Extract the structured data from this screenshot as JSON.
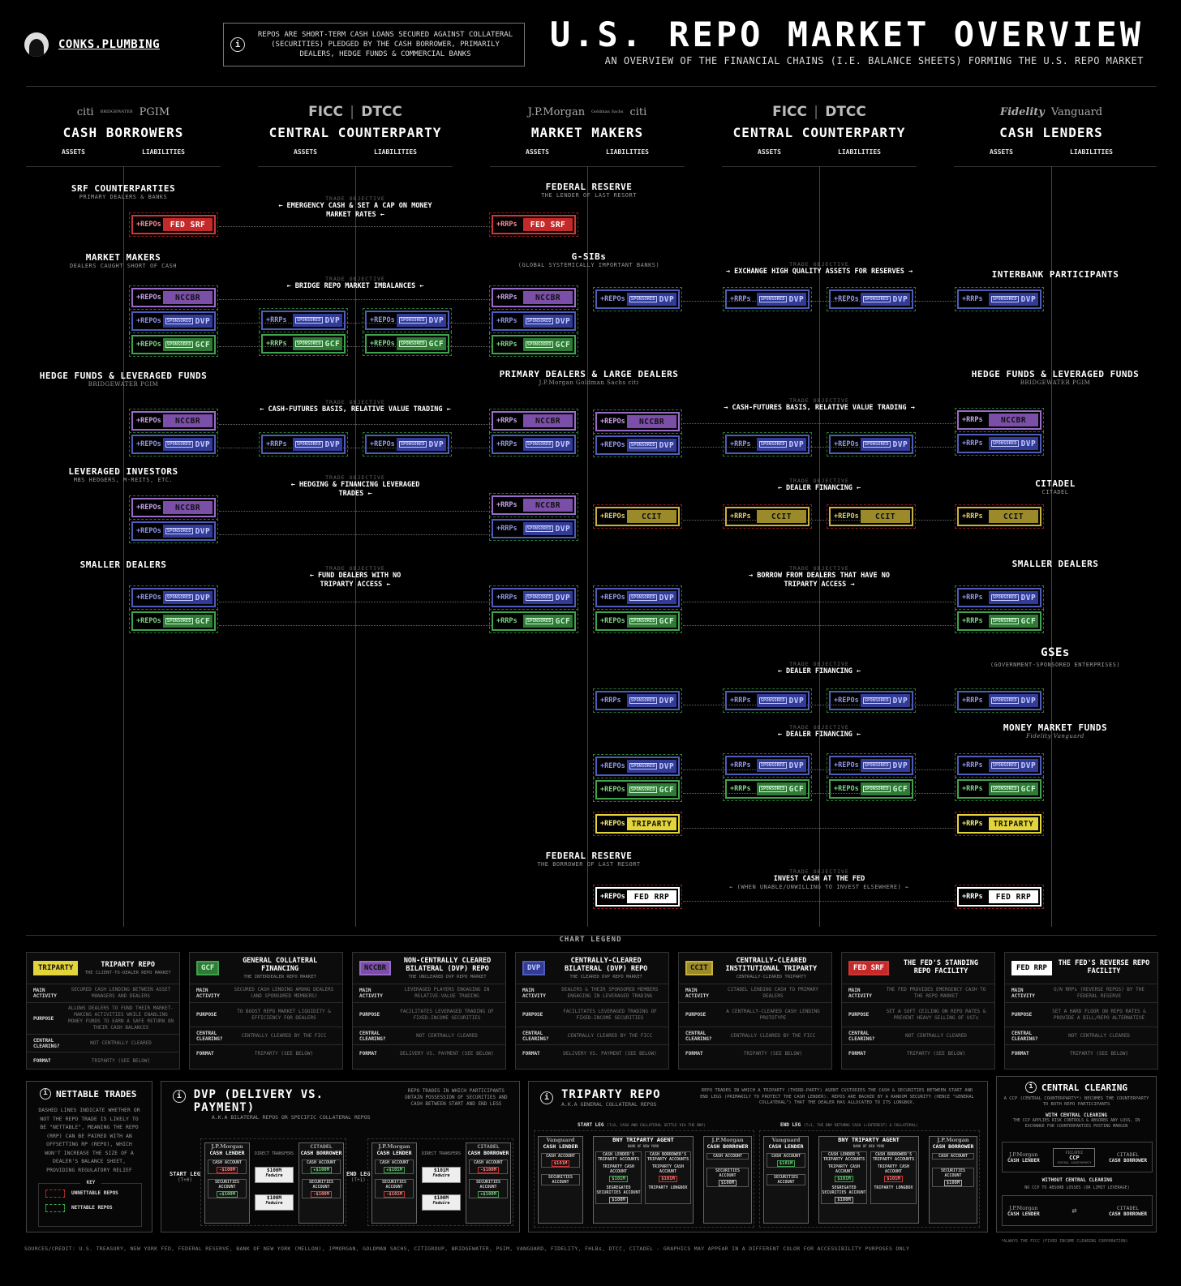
{
  "header": {
    "brand": "CONKS.PLUMBING",
    "intro": "REPOS ARE SHORT-TERM CASH LOANS SECURED AGAINST COLLATERAL (SECURITIES) PLEDGED BY THE CASH BORROWER, PRIMARILY DEALERS, HEDGE FUNDS & COMMERCIAL BANKS",
    "title": "U.S. REPO MARKET OVERVIEW",
    "subtitle": "AN OVERVIEW OF THE FINANCIAL CHAINS (I.E. BALANCE SHEETS) FORMING THE U.S. REPO MARKET"
  },
  "columns": [
    {
      "logos": [
        "citi",
        "BRIDGEWATER",
        "PGIM"
      ],
      "title": "CASH BORROWERS",
      "assets": "ASSETS",
      "liabilities": "LIABILITIES"
    },
    {
      "logos": [
        "FICC",
        "DTCC"
      ],
      "title": "CENTRAL COUNTERPARTY",
      "assets": "ASSETS",
      "liabilities": "LIABILITIES"
    },
    {
      "logos": [
        "J.P.Morgan",
        "Goldman Sachs",
        "citi"
      ],
      "title": "MARKET MAKERS",
      "assets": "ASSETS",
      "liabilities": "LIABILITIES"
    },
    {
      "logos": [
        "FICC",
        "DTCC"
      ],
      "title": "CENTRAL COUNTERPARTY",
      "assets": "ASSETS",
      "liabilities": "LIABILITIES"
    },
    {
      "logos": [
        "Fidelity",
        "Vanguard"
      ],
      "title": "CASH LENDERS",
      "assets": "ASSETS",
      "liabilities": "LIABILITIES"
    }
  ],
  "sections": {
    "srf_cp": {
      "label": "SRF COUNTERPARTIES",
      "sub": "PRIMARY DEALERS & BANKS"
    },
    "fed_top": {
      "label": "FEDERAL RESERVE",
      "sub": "THE LENDER OF LAST RESORT"
    },
    "mm": {
      "label": "MARKET MAKERS",
      "sub": "DEALERS CAUGHT SHORT OF CASH"
    },
    "gsibs": {
      "label": "G-SIBs",
      "sub": "(GLOBAL SYSTEMICALLY IMPORTANT BANKS)"
    },
    "interbank": {
      "label": "INTERBANK PARTICIPANTS"
    },
    "hf_left": {
      "label": "HEDGE FUNDS & LEVERAGED FUNDS",
      "logos": "BRIDGEWATER PGIM"
    },
    "pd": {
      "label": "PRIMARY DEALERS & LARGE DEALERS",
      "logos": "J.P.Morgan Goldman Sachs citi"
    },
    "hf_right": {
      "label": "HEDGE FUNDS & LEVERAGED FUNDS",
      "logos": "BRIDGEWATER PGIM"
    },
    "lev": {
      "label": "LEVERAGED INVESTORS",
      "sub": "MBS HEDGERS, M-REITS, ETC."
    },
    "citadel": {
      "label": "CITADEL",
      "sub": "CITADEL"
    },
    "small_left": {
      "label": "SMALLER DEALERS"
    },
    "small_right": {
      "label": "SMALLER DEALERS"
    },
    "gses": {
      "label": "GSEs",
      "sub": "(GOVERNMENT-SPONSORED ENTERPRISES)"
    },
    "mmf": {
      "label": "MONEY MARKET FUNDS",
      "logos": "Fidelity Vanguard"
    },
    "fed_bottom": {
      "label": "FEDERAL RESERVE",
      "sub": "THE BORROWER OF LAST RESORT"
    }
  },
  "trade_objective_label": "TRADE OBJECTIVE",
  "trade_objectives": {
    "srf": "← EMERGENCY CASH & SET A CAP ON MONEY MARKET RATES ←",
    "bridge": "← BRIDGE REPO MARKET IMBALANCES ←",
    "exchange": "→ EXCHANGE HIGH QUALITY ASSETS FOR RESERVES →",
    "basis_left": "← CASH-FUTURES BASIS, RELATIVE VALUE TRADING ←",
    "basis_right": "→ CASH-FUTURES BASIS, RELATIVE VALUE TRADING →",
    "hedging": "← HEDGING & FINANCING LEVERAGED TRADES ←",
    "dealer_fin_1": "← DEALER FINANCING ←",
    "fund_dealers": "← FUND DEALERS WITH NO TRIPARTY ACCESS ←",
    "borrow_dealers": "→ BORROW FROM DEALERS THAT HAVE NO TRIPARTY ACCESS →",
    "dealer_fin_2": "← DEALER FINANCING ←",
    "dealer_fin_3": "← DEALER FINANCING ←",
    "invest_fed": "INVEST CASH AT THE FED",
    "invest_fed_sub": "← (WHEN UNABLE/UNWILLING TO INVEST ELSEWHERE) ←"
  },
  "pill_text": {
    "repos": "+REPOs",
    "rrps": "+RRPs",
    "sponsored": "SPONSORED",
    "nccbr": "NCCBR",
    "dvp": "DVP",
    "gcf": "GCF",
    "ccit": "CCIT",
    "triparty": "TRIPARTY",
    "fed_srf": "FED SRF",
    "fed_rrp": "FED RRP"
  },
  "legend": {
    "heading": "CHART LEGEND",
    "row_keys": [
      "MAIN ACTIVITY",
      "PURPOSE",
      "CENTRAL CLEARING?",
      "FORMAT"
    ],
    "cards": [
      {
        "badge": "TRIPARTY",
        "title": "TRIPARTY REPO",
        "sub": "THE CLIENT-TO-DEALER REPO MARKET",
        "rows": [
          "SECURED CASH LENDING BETWEEN ASSET MANAGERS AND DEALERS",
          "ALLOWS DEALERS TO FUND THEIR MARKET-MAKING ACTIVITIES WHILE ENABLING MONEY FUNDS TO EARN A SAFE RETURN ON THEIR CASH BALANCES",
          "NOT CENTRALLY CLEARED",
          "TRIPARTY (SEE BELOW)"
        ]
      },
      {
        "badge": "GCF",
        "title": "GENERAL COLLATERAL FINANCING",
        "sub": "THE INTERDEALER REPO MARKET",
        "rows": [
          "SECURED CASH LENDING AMONG DEALERS (AND SPONSORED MEMBERS)",
          "TO BOOST REPO MARKET LIQUIDITY & EFFICIENCY FOR DEALERS",
          "CENTRALLY CLEARED BY THE FICC",
          "TRIPARTY (SEE BELOW)"
        ]
      },
      {
        "badge": "NCCBR",
        "title": "NON-CENTRALLY CLEARED BILATERAL (DVP) REPO",
        "sub": "THE UNCLEARED DVP REPO MARKET",
        "rows": [
          "LEVERAGED PLAYERS ENGAGING IN RELATIVE-VALUE TRADING",
          "FACILITATES LEVERAGED TRADING OF FIXED-INCOME SECURITIES",
          "NOT CENTRALLY CLEARED",
          "DELIVERY VS. PAYMENT (SEE BELOW)"
        ]
      },
      {
        "badge": "DVP",
        "title": "CENTRALLY-CLEARED BILATERAL (DVP) REPO",
        "sub": "THE CLEARED DVP REPO MARKET",
        "rows": [
          "DEALERS & THEIR SPONSORED MEMBERS ENGAGING IN LEVERAGED TRADING",
          "FACILITATES LEVERAGED TRADING OF FIXED-INCOME SECURITIES",
          "CENTRALLY CLEARED BY THE FICC",
          "DELIVERY VS. PAYMENT (SEE BELOW)"
        ]
      },
      {
        "badge": "CCIT",
        "title": "CENTRALLY-CLEARED INSTITUTIONAL TRIPARTY",
        "sub": "CENTRALLY-CLEARED TRIPARTY",
        "rows": [
          "CITADEL LENDING CASH TO PRIMARY DEALERS",
          "A CENTRALLY-CLEARED CASH LENDING PROTOTYPE",
          "CENTRALLY CLEARED BY THE FICC",
          "TRIPARTY (SEE BELOW)"
        ]
      },
      {
        "badge": "FED SRF",
        "title": "THE FED'S STANDING REPO FACILITY",
        "sub": "",
        "rows": [
          "THE FED PROVIDES EMERGENCY CASH TO THE REPO MARKET",
          "SET A SOFT CEILING ON REPO RATES & PREVENT HEAVY SELLING OF USTs",
          "NOT CENTRALLY CLEARED",
          "TRIPARTY (SEE BELOW)"
        ]
      },
      {
        "badge": "FED RRP",
        "title": "THE FED'S REVERSE REPO FACILITY",
        "sub": "",
        "rows": [
          "O/N RRPs (REVERSE REPOS) BY THE FEDERAL RESERVE",
          "SET A HARD FLOOR ON REPO RATES & PROVIDE A BILL/REPO ALTERNATIVE",
          "NOT CENTRALLY CLEARED",
          "TRIPARTY (SEE BELOW)"
        ]
      }
    ]
  },
  "nettable": {
    "title": "NETTABLE TRADES",
    "body": "DASHED LINES INDICATE WHETHER OR NOT THE REPO TRADE IS LIKELY TO BE \"NETTABLE\", MEANING THE REPO (RRP) CAN BE PAIRED WITH AN OFFSETTING RP (REPO), WHICH WON'T INCREASE THE SIZE OF A DEALER'S BALANCE SHEET, PROVIDING REGULATORY RELIEF",
    "key": "KEY",
    "unnettable": "UNNETTABLE REPOS",
    "nettable_label": "NETTABLE REPOS"
  },
  "dvp": {
    "title": "DVP (DELIVERY VS. PAYMENT)",
    "sub": "A.K.A BILATERAL REPOS OR SPECIFIC COLLATERAL REPOS",
    "desc": "REPO TRADES IN WHICH PARTICIPANTS OBTAIN POSSESSION OF SECURITIES AND CASH BETWEEN START AND END LEGS",
    "start": "START LEG",
    "start_t": "(T+0)",
    "end": "END LEG",
    "end_t": "(T+1)",
    "lender": "CASH LENDER",
    "borrower": "CASH BORROWER",
    "direct": "DIRECT TRANSFERS",
    "cash_acct": "CASH ACCOUNT",
    "sec_acct": "SECURITIES ACCOUNT",
    "jpm": "J.P.Morgan",
    "citadel": "CITADEL",
    "fedwire": "Fedwire",
    "start_amounts": [
      "-$100M",
      "$100M",
      "+$100M",
      "+$100M",
      "$100M",
      "-$100M"
    ],
    "end_amounts": [
      "+$101M",
      "$101M",
      "-$101M",
      "-$100M",
      "$100M",
      "+$100M"
    ]
  },
  "triparty": {
    "title": "TRIPARTY REPO",
    "sub": "A.K.A GENERAL COLLATERAL REPOS",
    "desc": "REPO TRADES IN WHICH A TRIPARTY (THIRD-PARTY) AGENT CUSTODIES THE CASH & SECURITIES BETWEEN START AND END LEGS (PRIMARILY TO PROTECT THE CASH LENDER). REPOS ARE BACKED BY A RANDOM SECURITY (HENCE \"GENERAL COLLATERAL\") THAT THE DEALER HAS ALLOCATED TO ITS LONGBOX.",
    "start": "START LEG",
    "start_note": "(T+0, CASH AND COLLATERAL SETTLE VIA THE BNY)",
    "end": "END LEG",
    "end_note": "(T+1, THE BNY RETURNS CASH (+INTEREST) & COLLATERAL)",
    "agent": "TRIPARTY AGENT",
    "agent_sub": "BANK OF NEW YORK",
    "bny": "BNY",
    "lender": "CASH LENDER",
    "borrower": "CASH BORROWER",
    "vanguard": "Vanguard",
    "jpm": "J.P.Morgan",
    "lender_tri": "CASH LENDER'S TRIPARTY ACCOUNTS",
    "borrower_tri": "CASH BORROWER'S TRIPARTY ACCOUNTS",
    "tri_cash": "TRIPARTY CASH ACCOUNT",
    "seg_sec": "SEGREGATED SECURITIES ACCOUNT",
    "longbox": "TRIPARTY LONGBOX",
    "cash_acct": "CASH ACCOUNT",
    "sec_acct": "SECURITIES ACCOUNT",
    "amount_start": "$101M",
    "amount_end": "$100M"
  },
  "central_clearing": {
    "title": "CENTRAL CLEARING",
    "desc": "A CCP (CENTRAL COUNTERPARTY*) BECOMES THE COUNTERPARTY TO BOTH REPO PARTICIPANTS",
    "with_title": "WITH CENTRAL CLEARING",
    "with_desc": "THE CCP APPLIES RISK CONTROLS & ABSORBS ANY LOSS, IN EXCHANGE FOR COUNTERPARTIES POSTING MARGIN",
    "without_title": "WITHOUT CENTRAL CLEARING",
    "without_desc": "NO CCP TO ABSORB LOSSES (OR LIMIT LEVERAGE)",
    "ccp": "CCP",
    "ccp_sub": "CENTRAL COUNTERPARTY",
    "ficc": "FICC/DTCC",
    "lender": "CASH LENDER",
    "borrower": "CASH BORROWER",
    "jpm": "J.P.Morgan",
    "citadel": "CITADEL",
    "footnote": "*ALWAYS THE FICC (FIXED INCOME CLEARING CORPORATION)"
  },
  "credits": "SOURCES/CREDIT: U.S. TREASURY, NEW YORK FED, FEDERAL RESERVE, BANK OF NEW YORK (MELLON), JPMORGAN, GOLDMAN SACHS, CITIGROUP, BRIDGEWATER, PGIM, VANGUARD, FIDELITY, FHLBs, DTCC, CITADEL - GRAPHICS MAY APPEAR IN A DIFFERENT COLOR FOR ACCESSIBILITY PURPOSES ONLY",
  "colors": {
    "nccbr": "#7b4ea8",
    "dvp": "#323c97",
    "gcf": "#2f7a37",
    "ccit": "#9a8a2a",
    "triparty": "#e2d43a",
    "fed_srf": "#c42a2a",
    "fed_rrp": "#ffffff"
  }
}
